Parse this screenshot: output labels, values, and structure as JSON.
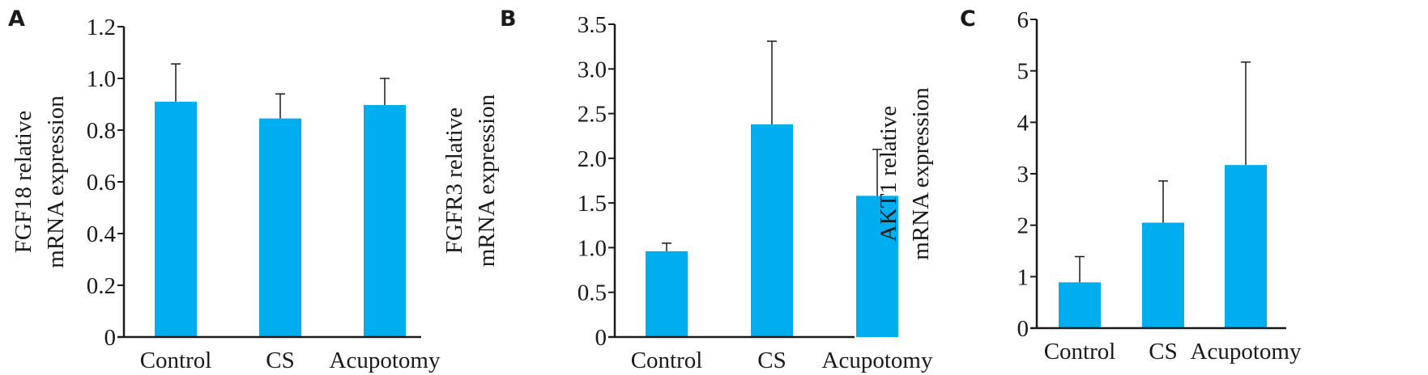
{
  "chart_data": [
    {
      "type": "bar",
      "panel_label": "A",
      "categories": [
        "Control",
        "CS",
        "Acupotomy"
      ],
      "values": [
        0.91,
        0.845,
        0.897
      ],
      "error_upper": [
        1.056,
        0.94,
        1.0
      ],
      "ylabel": [
        "FGF18 relative",
        "mRNA expression"
      ],
      "ylim": [
        0,
        1.2
      ],
      "yticks": [
        0,
        0.2,
        0.4,
        0.6,
        0.8,
        1.0,
        1.2
      ],
      "ytick_labels": [
        "0",
        "0.2",
        "0.4",
        "0.6",
        "0.8",
        "1.0",
        "1.2"
      ],
      "bar_color": "#00aeef",
      "grid": false
    },
    {
      "type": "bar",
      "panel_label": "B",
      "categories": [
        "Control",
        "CS",
        "Acupotomy"
      ],
      "values": [
        0.96,
        2.38,
        1.58
      ],
      "error_upper": [
        1.05,
        3.31,
        2.1
      ],
      "ylabel": [
        "FGFR3 relative",
        "mRNA expression"
      ],
      "ylim": [
        0,
        3.5
      ],
      "yticks": [
        0,
        0.5,
        1.0,
        1.5,
        2.0,
        2.5,
        3.0,
        3.5
      ],
      "ytick_labels": [
        "0",
        "0.5",
        "1.0",
        "1.5",
        "2.0",
        "2.5",
        "3.0",
        "3.5"
      ],
      "bar_color": "#00aeef",
      "grid": false
    },
    {
      "type": "bar",
      "panel_label": "C",
      "categories": [
        "Control",
        "CS",
        "Acupotomy"
      ],
      "values": [
        0.89,
        2.05,
        3.17
      ],
      "error_upper": [
        1.39,
        2.86,
        5.17
      ],
      "ylabel": [
        "AKT1 relative",
        "mRNA expression"
      ],
      "ylim": [
        0,
        6
      ],
      "yticks": [
        0,
        1,
        2,
        3,
        4,
        5,
        6
      ],
      "ytick_labels": [
        "0",
        "1",
        "2",
        "3",
        "4",
        "5",
        "6"
      ],
      "bar_color": "#00aeef",
      "grid": false
    }
  ]
}
